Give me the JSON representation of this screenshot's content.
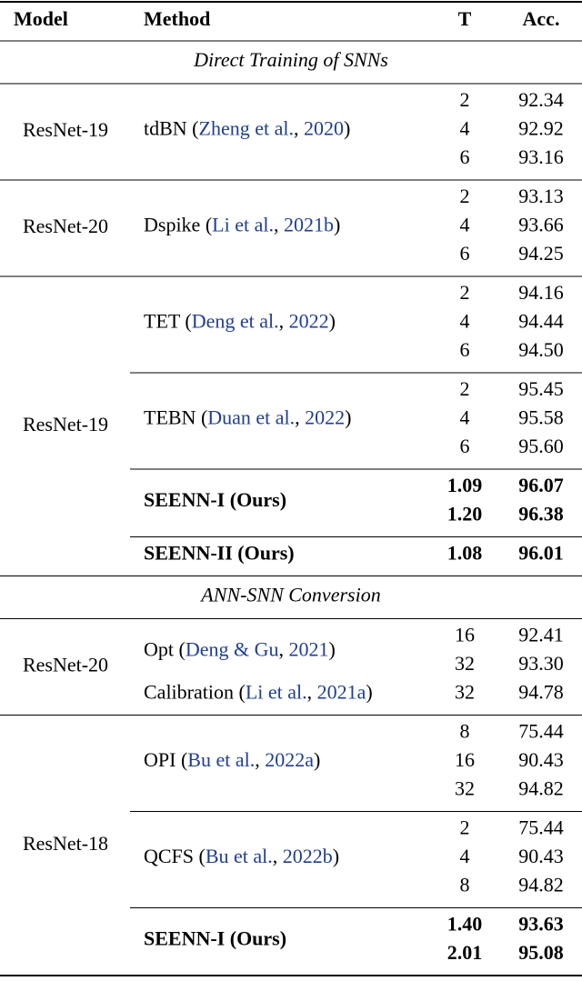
{
  "header": [
    "Model",
    "Method",
    "T",
    "Acc."
  ],
  "sections": [
    {
      "title": "Direct Training of SNNs",
      "groups": [
        {
          "model": "ResNet-19",
          "blocks": [
            {
              "methods": [
                {
                  "method": [
                    "tdBN (",
                    "Zheng et al.",
                    ", ",
                    "2020",
                    ")"
                  ],
                  "T": [
                    "2",
                    "4",
                    "6"
                  ],
                  "acc": [
                    "92.34",
                    "92.92",
                    "93.16"
                  ]
                }
              ]
            }
          ]
        },
        {
          "model": "ResNet-20",
          "blocks": [
            {
              "methods": [
                {
                  "method": [
                    "Dspike (",
                    "Li et al.",
                    ", ",
                    "2021b",
                    ")"
                  ],
                  "T": [
                    "2",
                    "4",
                    "6"
                  ],
                  "acc": [
                    "93.13",
                    "93.66",
                    "94.25"
                  ]
                }
              ]
            }
          ]
        },
        {
          "model": "ResNet-19",
          "blocks": [
            {
              "methods": [
                {
                  "method": [
                    "TET (",
                    "Deng et al.",
                    ", ",
                    "2022",
                    ")"
                  ],
                  "T": [
                    "2",
                    "4",
                    "6"
                  ],
                  "acc": [
                    "94.16",
                    "94.44",
                    "94.50"
                  ]
                }
              ]
            },
            {
              "methods": [
                {
                  "method": [
                    "TEBN (",
                    "Duan et al.",
                    ", ",
                    "2022",
                    ")"
                  ],
                  "T": [
                    "2",
                    "4",
                    "6"
                  ],
                  "acc": [
                    "95.45",
                    "95.58",
                    "95.60"
                  ]
                }
              ]
            },
            {
              "methods": [
                {
                  "method": [
                    "SEENN-I (Ours)"
                  ],
                  "bold": true,
                  "T": [
                    "1.09",
                    "1.20"
                  ],
                  "acc": [
                    "96.07",
                    "96.38"
                  ]
                }
              ]
            },
            {
              "methods": [
                {
                  "method": [
                    "SEENN-II (Ours)"
                  ],
                  "bold": true,
                  "T": [
                    "1.08"
                  ],
                  "acc": [
                    "96.01"
                  ]
                }
              ]
            }
          ]
        }
      ]
    },
    {
      "title": "ANN-SNN Conversion",
      "groups": [
        {
          "model": "ResNet-20",
          "blocks": [
            {
              "methods": [
                {
                  "method": [
                    "Opt (",
                    "Deng & Gu",
                    ", ",
                    "2021",
                    ")"
                  ],
                  "T": [
                    "16",
                    "32"
                  ],
                  "acc": [
                    "92.41",
                    "93.30"
                  ]
                },
                {
                  "method": [
                    "Calibration (",
                    "Li et al.",
                    ", ",
                    "2021a",
                    ")"
                  ],
                  "T": [
                    "32"
                  ],
                  "acc": [
                    "94.78"
                  ]
                }
              ]
            }
          ]
        },
        {
          "model": "ResNet-18",
          "blocks": [
            {
              "methods": [
                {
                  "method": [
                    "OPI (",
                    "Bu et al.",
                    ", ",
                    "2022a",
                    ")"
                  ],
                  "T": [
                    "8",
                    "16",
                    "32"
                  ],
                  "acc": [
                    "75.44",
                    "90.43",
                    "94.82"
                  ]
                }
              ]
            },
            {
              "methods": [
                {
                  "method": [
                    "QCFS (",
                    "Bu et al.",
                    ", ",
                    "2022b",
                    ")"
                  ],
                  "T": [
                    "2",
                    "4",
                    "8"
                  ],
                  "acc": [
                    "75.44",
                    "90.43",
                    "94.82"
                  ]
                }
              ]
            },
            {
              "methods": [
                {
                  "method": [
                    "SEENN-I (Ours)"
                  ],
                  "bold": true,
                  "T": [
                    "1.40",
                    "2.01"
                  ],
                  "acc": [
                    "93.63",
                    "95.08"
                  ]
                }
              ]
            }
          ]
        }
      ]
    }
  ]
}
